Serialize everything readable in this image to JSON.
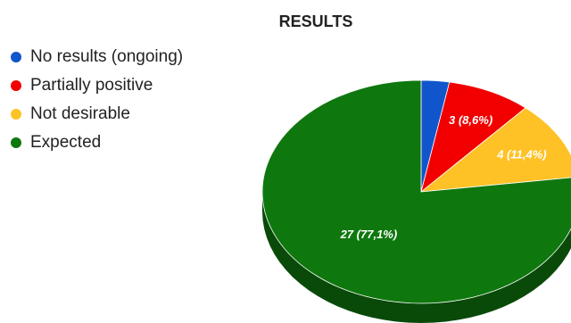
{
  "chart_data": {
    "type": "pie",
    "title": "RESULTS",
    "legend_position": "left",
    "slices": [
      {
        "label": "No results (ongoing)",
        "value": 1,
        "color": "#1155cc",
        "data_label": ""
      },
      {
        "label": "Partially positive",
        "value": 3,
        "color": "#f20000",
        "data_label": "3 (8,6%)"
      },
      {
        "label": "Not desirable",
        "value": 4,
        "color": "#ffc226",
        "data_label": "4 (11,4%)"
      },
      {
        "label": "Expected",
        "value": 27,
        "color": "#0e780e",
        "data_label": "27 (77,1%)"
      }
    ]
  }
}
